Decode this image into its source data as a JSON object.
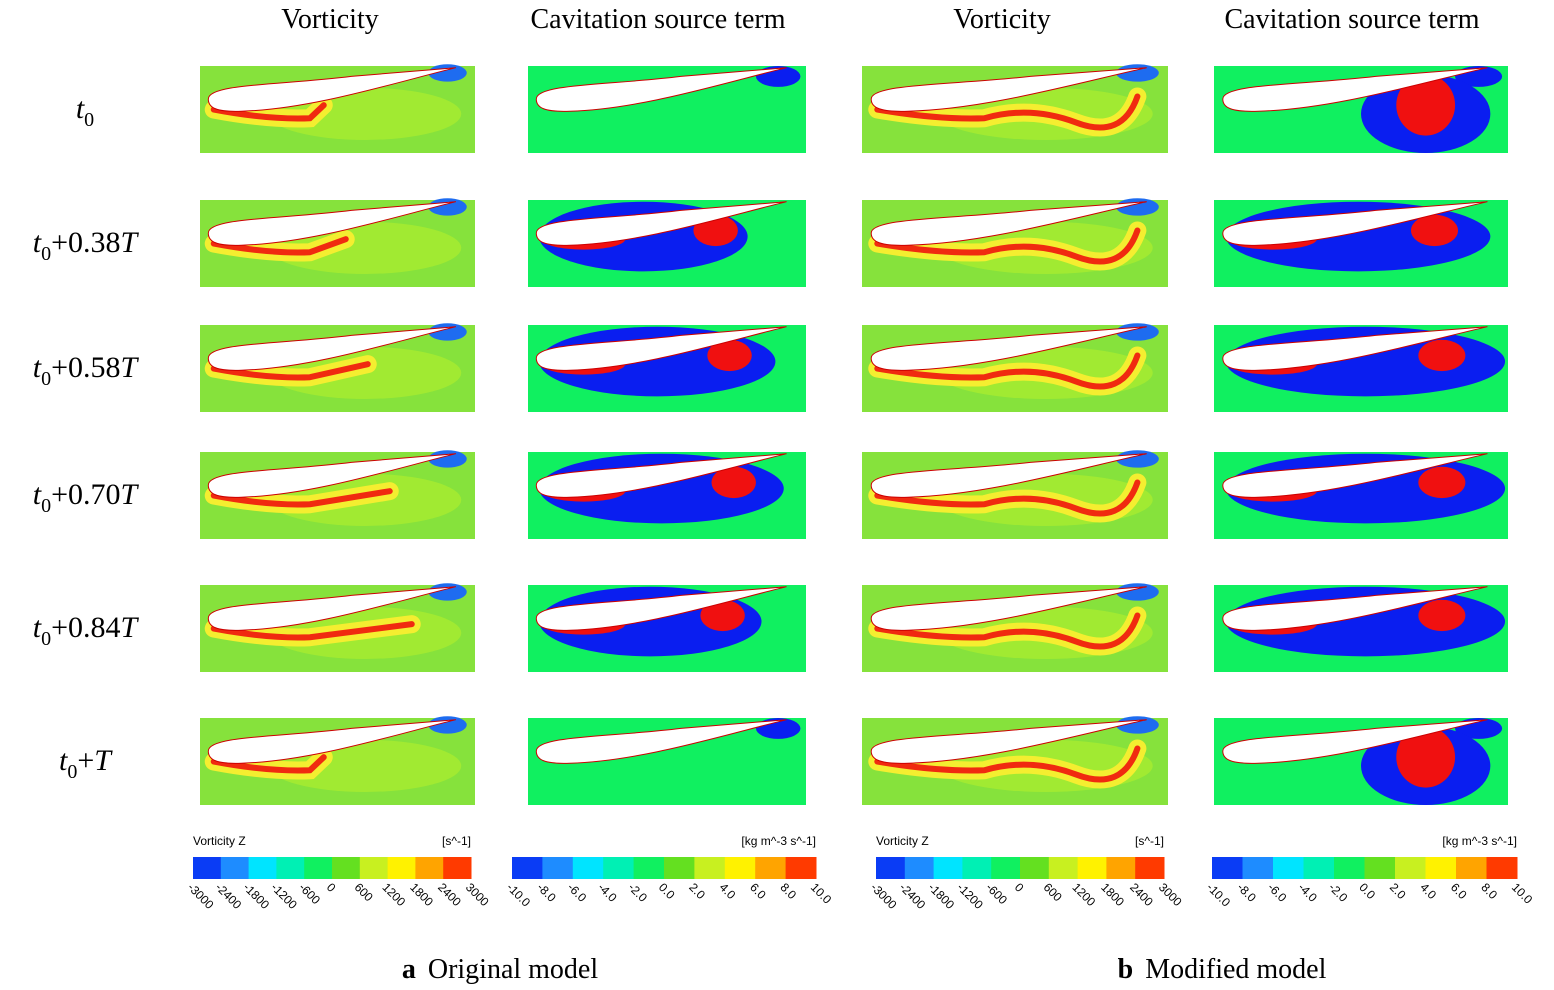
{
  "columns": [
    "Vorticity",
    "Cavitation source term",
    "Vorticity",
    "Cavitation source term"
  ],
  "rows": [
    {
      "var": "t",
      "sub": "0"
    },
    {
      "var": "t",
      "sub": "0",
      "offset": "+0.38",
      "period": "T"
    },
    {
      "var": "t",
      "sub": "0",
      "offset": "+0.58",
      "period": "T"
    },
    {
      "var": "t",
      "sub": "0",
      "offset": "+0.70",
      "period": "T"
    },
    {
      "var": "t",
      "sub": "0",
      "offset": "+0.84",
      "period": "T"
    },
    {
      "var": "t",
      "sub": "0",
      "offset": "+",
      "period": "T"
    }
  ],
  "colorbars": [
    {
      "title": "Vorticity Z",
      "unit": "[s^-1]",
      "ticks": [
        "-3000",
        "-2400",
        "-1800",
        "-1200",
        "-600",
        "0",
        "600",
        "1200",
        "1800",
        "2400",
        "3000"
      ]
    },
    {
      "unit": "[kg m^-3 s^-1]",
      "ticks": [
        "-10.0",
        "-8.0",
        "-6.0",
        "-4.0",
        "-2.0",
        "0.0",
        "2.0",
        "4.0",
        "6.0",
        "8.0",
        "10.0"
      ]
    },
    {
      "title": "Vorticity Z",
      "unit": "[s^-1]",
      "ticks": [
        "-3000",
        "-2400",
        "-1800",
        "-1200",
        "-600",
        "0",
        "600",
        "1200",
        "1800",
        "2400",
        "3000"
      ]
    },
    {
      "unit": "[kg m^-3 s^-1]",
      "ticks": [
        "-10.0",
        "-8.0",
        "-6.0",
        "-4.0",
        "-2.0",
        "0.0",
        "2.0",
        "4.0",
        "6.0",
        "8.0",
        "10.0"
      ]
    }
  ],
  "colorbar_colors": [
    "#0a3cf5",
    "#1e8cff",
    "#00e4ff",
    "#00f0b4",
    "#10f060",
    "#64e020",
    "#c8f020",
    "#fff200",
    "#ffa400",
    "#ff3a00"
  ],
  "captions": [
    {
      "letter": "a",
      "text": "Original model"
    },
    {
      "letter": "b",
      "text": "Modified model"
    }
  ]
}
